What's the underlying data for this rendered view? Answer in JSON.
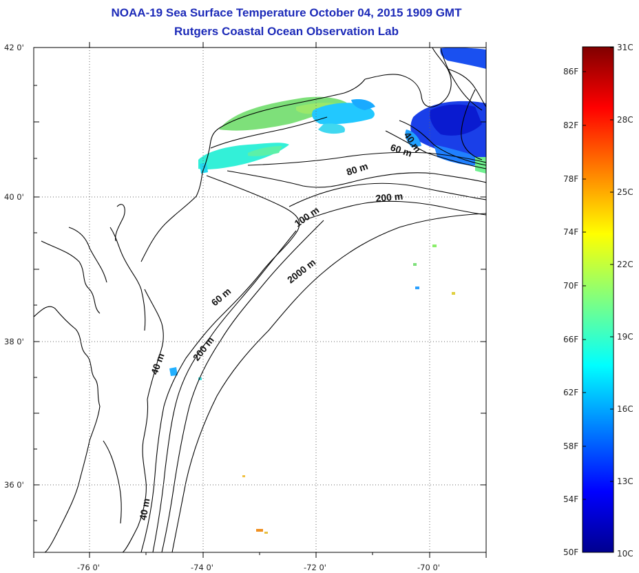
{
  "header": {
    "title": "NOAA-19 Sea Surface Temperature October 04, 2015 1909 GMT",
    "subtitle": "Rutgers Coastal Ocean Observation Lab"
  },
  "map": {
    "lat_ticks": [
      "42 0'",
      "40 0'",
      "38 0'",
      "36 0'"
    ],
    "lon_ticks": [
      "-76 0'",
      "-74 0'",
      "-72 0'",
      "-70 0'"
    ],
    "contour_labels": [
      "40 m",
      "60 m",
      "80 m",
      "200 m",
      "100 m",
      "2000 m",
      "60 m",
      "40 m",
      "200 m",
      "40 m"
    ]
  },
  "colorbar": {
    "f_labels": [
      "86F",
      "82F",
      "78F",
      "74F",
      "70F",
      "66F",
      "62F",
      "58F",
      "54F",
      "50F"
    ],
    "c_labels": [
      "31C",
      "28C",
      "25C",
      "22C",
      "19C",
      "16C",
      "13C",
      "10C"
    ]
  },
  "colors": {
    "title": "#1c2ab8",
    "colormap": "jet"
  }
}
